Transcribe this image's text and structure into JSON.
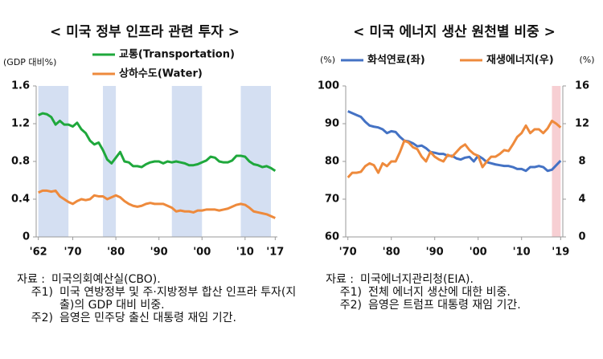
{
  "chart_data": [
    {
      "type": "line",
      "title": "< 미국 정부 인프라 관련 투자 >",
      "ylabel": "(GDP 대비%)",
      "x": [
        1962,
        1963,
        1964,
        1965,
        1966,
        1967,
        1968,
        1969,
        1970,
        1971,
        1972,
        1973,
        1974,
        1975,
        1976,
        1977,
        1978,
        1979,
        1980,
        1981,
        1982,
        1983,
        1984,
        1985,
        1986,
        1987,
        1988,
        1989,
        1990,
        1991,
        1992,
        1993,
        1994,
        1995,
        1996,
        1997,
        1998,
        1999,
        2000,
        2001,
        2002,
        2003,
        2004,
        2005,
        2006,
        2007,
        2008,
        2009,
        2010,
        2011,
        2012,
        2013,
        2014,
        2015,
        2016,
        2017
      ],
      "series": [
        {
          "name": "교통(Transportation)",
          "color": "#1fa83c",
          "values": [
            1.29,
            1.31,
            1.3,
            1.27,
            1.19,
            1.23,
            1.19,
            1.19,
            1.17,
            1.21,
            1.14,
            1.1,
            1.02,
            0.98,
            1.0,
            0.92,
            0.82,
            0.78,
            0.84,
            0.9,
            0.8,
            0.79,
            0.75,
            0.75,
            0.74,
            0.77,
            0.79,
            0.8,
            0.8,
            0.78,
            0.8,
            0.79,
            0.8,
            0.79,
            0.78,
            0.76,
            0.76,
            0.77,
            0.79,
            0.81,
            0.85,
            0.84,
            0.8,
            0.79,
            0.79,
            0.81,
            0.86,
            0.86,
            0.85,
            0.8,
            0.77,
            0.76,
            0.74,
            0.75,
            0.73,
            0.7
          ]
        },
        {
          "name": "상하수도(Water)",
          "color": "#ee8a3c",
          "values": [
            0.47,
            0.49,
            0.49,
            0.48,
            0.49,
            0.43,
            0.4,
            0.37,
            0.35,
            0.38,
            0.4,
            0.39,
            0.4,
            0.44,
            0.43,
            0.43,
            0.4,
            0.42,
            0.44,
            0.42,
            0.38,
            0.35,
            0.33,
            0.32,
            0.33,
            0.35,
            0.36,
            0.35,
            0.35,
            0.35,
            0.33,
            0.31,
            0.27,
            0.28,
            0.27,
            0.27,
            0.26,
            0.28,
            0.28,
            0.29,
            0.29,
            0.29,
            0.28,
            0.29,
            0.3,
            0.32,
            0.34,
            0.35,
            0.34,
            0.31,
            0.27,
            0.26,
            0.25,
            0.24,
            0.22,
            0.2
          ]
        }
      ],
      "shaded_ranges": [
        [
          1962,
          1969
        ],
        [
          1977,
          1980
        ],
        [
          1993,
          2000
        ],
        [
          2009,
          2016
        ]
      ],
      "shade_color": "#d4dff2",
      "xlim": [
        1961.5,
        2017.5
      ],
      "xticks": [
        {
          "value": 1962,
          "label": "'62"
        },
        {
          "value": 1970,
          "label": "'70"
        },
        {
          "value": 1980,
          "label": "'80"
        },
        {
          "value": 1990,
          "label": "'90"
        },
        {
          "value": 2000,
          "label": "'00"
        },
        {
          "value": 2010,
          "label": "'10"
        },
        {
          "value": 2017,
          "label": "'17"
        }
      ],
      "ylim": [
        0,
        1.6
      ],
      "yticks": [
        0,
        0.4,
        0.8,
        1.2,
        1.6
      ],
      "notes": [
        {
          "label": "자료 :",
          "text": "미국의회예산실(CBO)."
        },
        {
          "label": "주1)",
          "text": "미국 연방정부 및 주·지방정부 합산 인프라 투자(지출)의 GDP 대비 비중."
        },
        {
          "label": "주2)",
          "text": "음영은 민주당 출신 대통령 재임 기간."
        }
      ]
    },
    {
      "type": "line",
      "title": "< 미국 에너지 생산 원천별 비중 >",
      "ylabel": "(%)",
      "y2label": "(%)",
      "x": [
        1970,
        1971,
        1972,
        1973,
        1974,
        1975,
        1976,
        1977,
        1978,
        1979,
        1980,
        1981,
        1982,
        1983,
        1984,
        1985,
        1986,
        1987,
        1988,
        1989,
        1990,
        1991,
        1992,
        1993,
        1994,
        1995,
        1996,
        1997,
        1998,
        1999,
        2000,
        2001,
        2002,
        2003,
        2004,
        2005,
        2006,
        2007,
        2008,
        2009,
        2010,
        2011,
        2012,
        2013,
        2014,
        2015,
        2016,
        2017,
        2018,
        2019
      ],
      "series": [
        {
          "name": "화석연료(좌)",
          "color": "#4472c4",
          "values": [
            93.3,
            92.8,
            92.3,
            91.8,
            90.5,
            89.5,
            89.2,
            89.0,
            88.5,
            87.5,
            88.0,
            87.8,
            86.5,
            85.5,
            85.3,
            84.8,
            84.0,
            84.2,
            83.5,
            82.5,
            82.3,
            82.0,
            82.0,
            81.5,
            81.5,
            80.8,
            80.5,
            81.0,
            81.2,
            80.0,
            81.5,
            80.8,
            79.8,
            79.5,
            79.2,
            79.0,
            78.8,
            78.8,
            78.5,
            78.0,
            78.0,
            77.5,
            78.5,
            78.5,
            78.8,
            78.5,
            77.5,
            77.8,
            79.0,
            80.2
          ]
        },
        {
          "name": "재생에너지(우)",
          "color": "#ee8a3c",
          "axis": "y2",
          "values": [
            6.3,
            6.8,
            6.8,
            6.9,
            7.5,
            7.8,
            7.6,
            6.8,
            7.8,
            7.5,
            8.0,
            8.0,
            9.0,
            10.2,
            10.0,
            9.5,
            9.3,
            8.5,
            8.0,
            9.0,
            8.5,
            8.2,
            8.0,
            8.7,
            8.5,
            9.0,
            9.5,
            9.8,
            9.2,
            8.8,
            8.6,
            7.4,
            8.0,
            8.5,
            8.5,
            8.8,
            9.2,
            9.1,
            9.8,
            10.6,
            11.0,
            11.8,
            11.0,
            11.4,
            11.4,
            11.0,
            11.5,
            12.3,
            12.0,
            11.6
          ]
        }
      ],
      "shaded_ranges": [
        [
          2017,
          2019
        ]
      ],
      "shade_color": "#f7cfd3",
      "xlim": [
        1969.5,
        2019.5
      ],
      "xticks": [
        {
          "value": 1970,
          "label": "'70"
        },
        {
          "value": 1980,
          "label": "'80"
        },
        {
          "value": 1990,
          "label": "'90"
        },
        {
          "value": 2000,
          "label": "'00"
        },
        {
          "value": 2010,
          "label": "'10"
        },
        {
          "value": 2019,
          "label": "'19"
        }
      ],
      "ylim": [
        60,
        100
      ],
      "yticks": [
        60,
        70,
        80,
        90,
        100
      ],
      "y2lim": [
        0,
        16
      ],
      "y2ticks": [
        0,
        4,
        8,
        12,
        16
      ],
      "notes": [
        {
          "label": "자료 :",
          "text": "미국에너지관리청(EIA)."
        },
        {
          "label": "주1)",
          "text": "전체 에너지 생산에 대한 비중."
        },
        {
          "label": "주2)",
          "text": "음영은 트럼프 대통령 재임 기간."
        }
      ]
    }
  ]
}
